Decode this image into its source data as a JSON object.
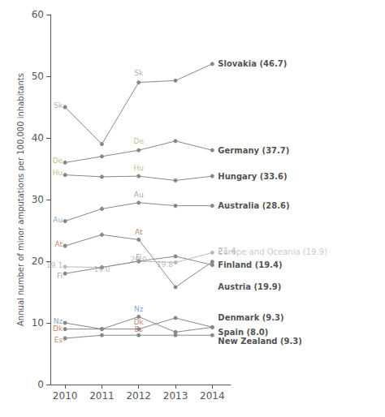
{
  "chart_data": {
    "type": "line",
    "x": [
      2010,
      2011,
      2012,
      2013,
      2014
    ],
    "xlim": [
      2009.6,
      2014.5
    ],
    "xticks": [
      2010,
      2011,
      2012,
      2013,
      2014
    ],
    "ylim": [
      0,
      60
    ],
    "yticks": [
      0,
      10,
      20,
      30,
      40,
      50,
      60
    ],
    "y_label": "Annual number of minor amputations per 100,000 inhabitants",
    "grid": false,
    "marker": "circle",
    "series": [
      {
        "color": "#888888",
        "values": [
          45.0,
          39.0,
          49.0,
          49.3,
          52.0
        ]
      },
      {
        "color": "#888888",
        "values": [
          36.0,
          37.0,
          38.0,
          39.5,
          38.0
        ]
      },
      {
        "color": "#888888",
        "values": [
          34.0,
          33.7,
          33.8,
          33.1,
          33.8
        ]
      },
      {
        "color": "#888888",
        "values": [
          26.5,
          28.5,
          29.5,
          29.0,
          29.0
        ]
      },
      {
        "color": "#888888",
        "values": [
          22.5,
          24.3,
          23.5,
          15.8,
          19.9
        ]
      },
      {
        "color": "#bbbbbb",
        "values": [
          19.1,
          19.0,
          20.0,
          19.8,
          21.4
        ]
      },
      {
        "color": "#888888",
        "values": [
          18.0,
          19.0,
          20.0,
          20.8,
          19.4
        ]
      },
      {
        "color": "#888888",
        "values": [
          9.0,
          9.0,
          9.0,
          10.8,
          9.3
        ]
      },
      {
        "color": "#888888",
        "values": [
          7.5,
          8.0,
          8.0,
          8.0,
          8.0
        ]
      },
      {
        "color": "#888888",
        "values": [
          10.0,
          9.0,
          11.0,
          8.5,
          9.3
        ]
      }
    ],
    "annotations": [
      {
        "x": 2010,
        "y": 45.2,
        "text": "Sk",
        "color": "#999999",
        "position": "left",
        "weight": "normal"
      },
      {
        "x": 2010,
        "y": 36.3,
        "text": "De",
        "color": "#b0b060",
        "position": "left",
        "weight": "normal"
      },
      {
        "x": 2010,
        "y": 34.3,
        "text": "Hu",
        "color": "#b0b060",
        "position": "left",
        "weight": "normal"
      },
      {
        "x": 2010,
        "y": 26.7,
        "text": "Au",
        "color": "#7090b0",
        "position": "left",
        "weight": "normal"
      },
      {
        "x": 2010,
        "y": 22.7,
        "text": "At",
        "color": "#b06840",
        "position": "left",
        "weight": "normal"
      },
      {
        "x": 2010,
        "y": 17.6,
        "text": "Fi",
        "color": "#7090b0",
        "position": "left",
        "weight": "normal"
      },
      {
        "x": 2010,
        "y": 9.1,
        "text": "Dk",
        "color": "#b06840",
        "position": "left",
        "weight": "normal"
      },
      {
        "x": 2010,
        "y": 7.3,
        "text": "Es",
        "color": "#b06840",
        "position": "left",
        "weight": "normal"
      },
      {
        "x": 2010,
        "y": 10.3,
        "text": "Nz",
        "color": "#7090b0",
        "position": "left",
        "weight": "normal"
      },
      {
        "x": 2012,
        "y": 49.5,
        "text": "Sk",
        "color": "#999999",
        "position": "top",
        "weight": "normal"
      },
      {
        "x": 2012,
        "y": 38.5,
        "text": "De",
        "color": "#b0b060",
        "position": "top",
        "weight": "normal"
      },
      {
        "x": 2012,
        "y": 34.1,
        "text": "Hu",
        "color": "#b0b060",
        "position": "top",
        "weight": "normal"
      },
      {
        "x": 2012,
        "y": 29.8,
        "text": "Au",
        "color": "#7090b0",
        "position": "top",
        "weight": "normal"
      },
      {
        "x": 2012,
        "y": 23.8,
        "text": "At",
        "color": "#b06840",
        "position": "top",
        "weight": "normal"
      },
      {
        "x": 2012,
        "y": 19.7,
        "text": "Fi",
        "color": "#7090b0",
        "position": "top",
        "weight": "normal"
      },
      {
        "x": 2012,
        "y": 9.1,
        "text": "Dk",
        "color": "#b06840",
        "position": "top",
        "weight": "normal"
      },
      {
        "x": 2012,
        "y": 7.9,
        "text": "Es",
        "color": "#b06840",
        "position": "top",
        "weight": "normal"
      },
      {
        "x": 2012,
        "y": 11.3,
        "text": "Nz",
        "color": "#7090b0",
        "position": "top",
        "weight": "normal"
      },
      {
        "x": 2010,
        "y": 19.4,
        "text": "19.1",
        "color": "#aaaaaa",
        "position": "left",
        "weight": "normal"
      },
      {
        "x": 2011,
        "y": 18.7,
        "text": "19.0",
        "color": "#aaaaaa",
        "position": "center",
        "weight": "normal"
      },
      {
        "x": 2012,
        "y": 20.3,
        "text": "20.0",
        "color": "#aaaaaa",
        "position": "center",
        "weight": "normal"
      },
      {
        "x": 2013,
        "y": 19.5,
        "text": "19.8",
        "color": "#aaaaaa",
        "position": "left",
        "weight": "normal"
      },
      {
        "x": 2014,
        "y": 21.7,
        "text": "21.4",
        "color": "#aaaaaa",
        "position": "right",
        "weight": "normal"
      },
      {
        "x": 2014,
        "y": 52.0,
        "text": "Slovakia (46.7)",
        "color": "#222222",
        "position": "right",
        "weight": "bold"
      },
      {
        "x": 2014,
        "y": 38.0,
        "text": "Germany (37.7)",
        "color": "#222222",
        "position": "right",
        "weight": "bold"
      },
      {
        "x": 2014,
        "y": 33.8,
        "text": "Hungary (33.6)",
        "color": "#222222",
        "position": "right",
        "weight": "bold"
      },
      {
        "x": 2014,
        "y": 29.0,
        "text": "Australia (28.6)",
        "color": "#222222",
        "position": "right",
        "weight": "bold"
      },
      {
        "x": 2014,
        "y": 21.5,
        "text": "Europe and Oceania (19.9)",
        "color": "#bbbbbb",
        "position": "right",
        "weight": "normal"
      },
      {
        "x": 2014,
        "y": 19.4,
        "text": "Finland (19.4)",
        "color": "#222222",
        "position": "right",
        "weight": "bold"
      },
      {
        "x": 2014,
        "y": 15.8,
        "text": "Austria (19.9)",
        "color": "#222222",
        "position": "right",
        "weight": "bold"
      },
      {
        "x": 2014,
        "y": 10.8,
        "text": "Denmark (9.3)",
        "color": "#222222",
        "position": "right",
        "weight": "bold"
      },
      {
        "x": 2014,
        "y": 8.5,
        "text": "Spain (8.0)",
        "color": "#222222",
        "position": "right",
        "weight": "bold"
      },
      {
        "x": 2014,
        "y": 7.0,
        "text": "New Zealand (9.3)",
        "color": "#222222",
        "position": "right",
        "weight": "bold"
      }
    ]
  }
}
